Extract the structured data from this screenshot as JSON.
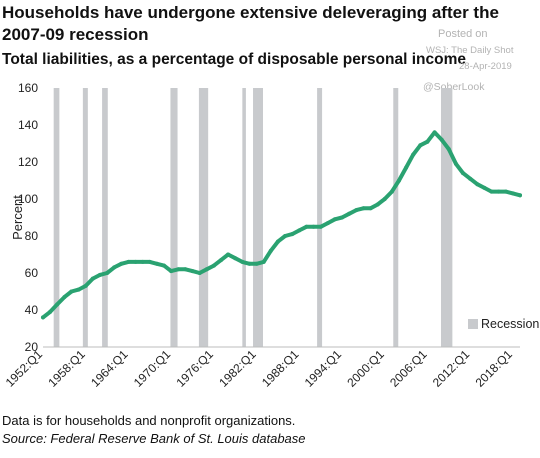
{
  "watermark": {
    "posted": "Posted on",
    "source": "WSJ: The Daily Shot",
    "date": "28-Apr-2019",
    "handle": "@SoberLook"
  },
  "footnote": "Data is for households and nonprofit organizations.",
  "source_note": "Source: Federal Reserve Bank of St. Louis database",
  "chart_data": {
    "type": "line",
    "title": "Households have undergone extensive deleveraging after the 2007-09 recession",
    "subtitle": "Total liabilities, as a percentage of disposable personal income",
    "xlabel": "",
    "ylabel": "Percent",
    "ylim": [
      20,
      160
    ],
    "yticks": [
      20,
      40,
      60,
      80,
      100,
      120,
      140,
      160
    ],
    "xlim": [
      1952.0,
      2019.0
    ],
    "xticks": [
      {
        "value": 1952.0,
        "label": "1952:Q1"
      },
      {
        "value": 1958.0,
        "label": "1958:Q1"
      },
      {
        "value": 1964.0,
        "label": "1964:Q1"
      },
      {
        "value": 1970.0,
        "label": "1970:Q1"
      },
      {
        "value": 1976.0,
        "label": "1976:Q1"
      },
      {
        "value": 1982.0,
        "label": "1982:Q1"
      },
      {
        "value": 1988.0,
        "label": "1988:Q1"
      },
      {
        "value": 1994.0,
        "label": "1994:Q1"
      },
      {
        "value": 2000.0,
        "label": "2000:Q1"
      },
      {
        "value": 2006.0,
        "label": "2006:Q1"
      },
      {
        "value": 2012.0,
        "label": "2012:Q1"
      },
      {
        "value": 2018.0,
        "label": "2018:Q1"
      }
    ],
    "grid": false,
    "legend": {
      "position": "bottom-right",
      "entries": [
        "Recession"
      ]
    },
    "colors": {
      "line": "#2aa271",
      "recession": "#c8cacd"
    },
    "recessions": [
      [
        1953.5,
        1954.3
      ],
      [
        1957.6,
        1958.3
      ],
      [
        1960.3,
        1961.1
      ],
      [
        1969.9,
        1970.9
      ],
      [
        1973.9,
        1975.2
      ],
      [
        1980.0,
        1980.5
      ],
      [
        1981.5,
        1982.9
      ],
      [
        1990.5,
        1991.2
      ],
      [
        2001.2,
        2001.9
      ],
      [
        2007.9,
        2009.5
      ]
    ],
    "series": [
      {
        "x": [
          1952.0,
          1953.0,
          1954.0,
          1955.0,
          1956.0,
          1957.0,
          1958.0,
          1959.0,
          1960.0,
          1961.0,
          1962.0,
          1963.0,
          1964.0,
          1965.0,
          1966.0,
          1967.0,
          1968.0,
          1969.0,
          1970.0,
          1971.0,
          1972.0,
          1973.0,
          1974.0,
          1975.0,
          1976.0,
          1977.0,
          1978.0,
          1979.0,
          1980.0,
          1981.0,
          1982.0,
          1983.0,
          1984.0,
          1985.0,
          1986.0,
          1987.0,
          1988.0,
          1989.0,
          1990.0,
          1991.0,
          1992.0,
          1993.0,
          1994.0,
          1995.0,
          1996.0,
          1997.0,
          1998.0,
          1999.0,
          2000.0,
          2001.0,
          2002.0,
          2003.0,
          2004.0,
          2005.0,
          2006.0,
          2007.0,
          2008.0,
          2009.0,
          2010.0,
          2011.0,
          2012.0,
          2013.0,
          2014.0,
          2015.0,
          2016.0,
          2017.0,
          2018.0,
          2019.0
        ],
        "values": [
          36,
          39,
          43,
          47,
          50,
          51,
          53,
          57,
          59,
          60,
          63,
          65,
          66,
          66,
          66,
          66,
          65,
          64,
          61,
          62,
          62,
          61,
          60,
          62,
          64,
          67,
          70,
          68,
          66,
          65,
          65,
          66,
          72,
          77,
          80,
          81,
          83,
          85,
          85,
          85,
          87,
          89,
          90,
          92,
          94,
          95,
          95,
          97,
          100,
          104,
          110,
          117,
          124,
          129,
          131,
          136,
          132,
          127,
          119,
          114,
          111,
          108,
          106,
          104,
          104,
          104,
          103,
          102
        ]
      }
    ]
  }
}
